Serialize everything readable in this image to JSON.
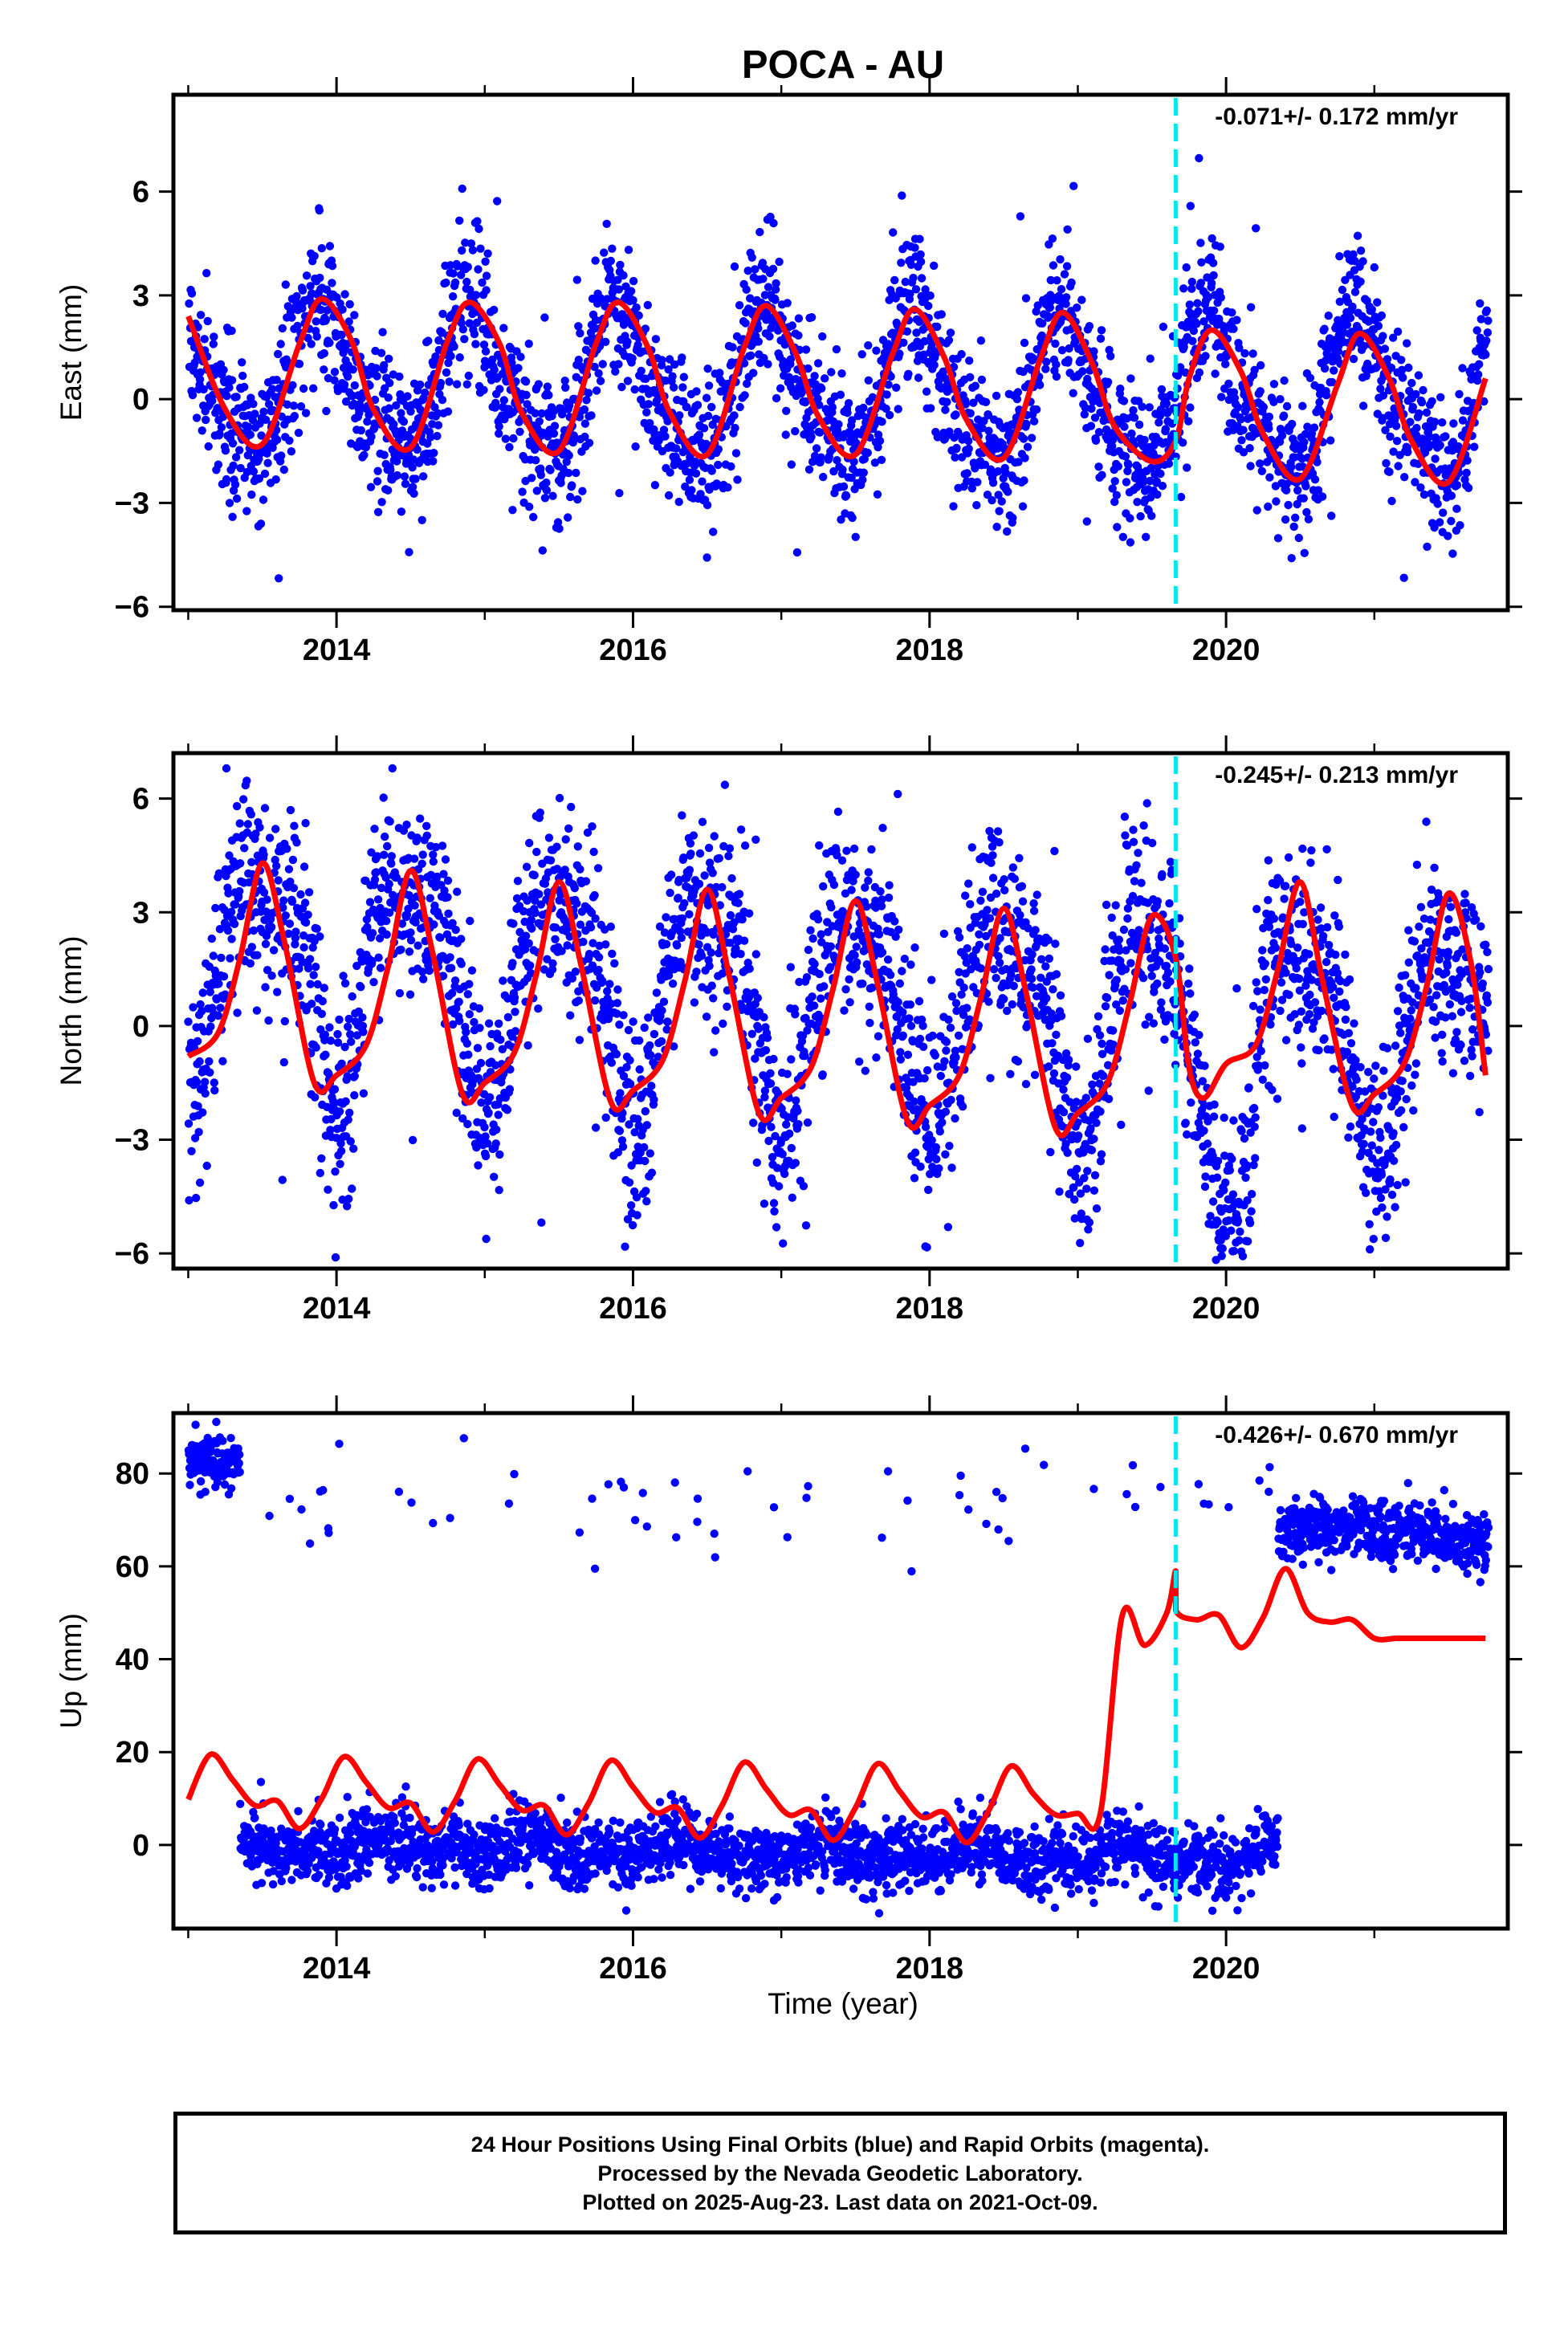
{
  "figure": {
    "title": "POCA - AU",
    "xlabel": "Time (year)"
  },
  "footer": {
    "line1": "24 Hour Positions Using Final Orbits (blue) and Rapid Orbits (magenta).",
    "line2": "Processed by the Nevada Geodetic Laboratory.",
    "line3": "Plotted on 2025-Aug-23. Last data on 2021-Oct-09."
  },
  "colors": {
    "points": "#0000ff",
    "model": "#ff0000",
    "event_line": "#00e5ee",
    "axes": "#000000"
  },
  "chart_data": [
    {
      "type": "scatter",
      "panel": "east",
      "ylabel": "East (mm)",
      "rate_label": "-0.071+/- 0.172 mm/yr",
      "xlim": [
        2012.9,
        2021.9
      ],
      "ylim": [
        -6.1,
        8.8
      ],
      "xticks": [
        2014,
        2016,
        2018,
        2020
      ],
      "yticks": [
        -6,
        -3,
        0,
        3,
        6
      ],
      "event_lines": [
        2019.66
      ],
      "data_series": {
        "name": "daily positions (final orbits)",
        "model": {
          "offset": 0.3,
          "trend": -0.071,
          "annual_amp": 2.1,
          "annual_peak": 0.9,
          "semi_amp": 0.5,
          "semi_phase": 0.15,
          "noise": 1.05,
          "start": 2013.0,
          "end": 2021.77,
          "mjump": 0,
          "djump": 0,
          "drift": -0.03
        }
      },
      "model_series": {
        "name": "fitted model",
        "x": [
          2013.0,
          2013.25,
          2013.5,
          2013.75,
          2013.9,
          2014.1,
          2014.25,
          2014.5,
          2014.75,
          2014.9,
          2015.1,
          2015.25,
          2015.5,
          2015.75,
          2015.9,
          2016.1,
          2016.25,
          2016.5,
          2016.75,
          2016.9,
          2017.1,
          2017.25,
          2017.5,
          2017.75,
          2017.9,
          2018.1,
          2018.25,
          2018.5,
          2018.75,
          2018.9,
          2019.1,
          2019.25,
          2019.5,
          2019.66,
          2019.75,
          2019.9,
          2020.1,
          2020.25,
          2020.5,
          2020.75,
          2020.9,
          2021.1,
          2021.25,
          2021.5,
          2021.75
        ],
        "y": [
          2.4,
          -0.3,
          -1.3,
          1.6,
          2.9,
          1.7,
          -0.3,
          -1.4,
          1.7,
          2.8,
          1.6,
          -0.4,
          -1.5,
          1.6,
          2.8,
          1.5,
          -0.4,
          -1.6,
          1.5,
          2.7,
          1.3,
          -0.5,
          -1.6,
          1.3,
          2.6,
          1.2,
          -0.6,
          -1.7,
          1.2,
          2.5,
          1.0,
          -0.8,
          -1.8,
          -1.2,
          0.6,
          2.0,
          0.8,
          -1.0,
          -2.3,
          0.4,
          1.9,
          0.6,
          -1.2,
          -2.4,
          0.6
        ]
      }
    },
    {
      "type": "scatter",
      "panel": "north",
      "ylabel": "North (mm)",
      "rate_label": "-0.245+/- 0.213 mm/yr",
      "xlim": [
        2012.9,
        2021.9
      ],
      "ylim": [
        -6.4,
        7.2
      ],
      "xticks": [
        2014,
        2016,
        2018,
        2020
      ],
      "yticks": [
        -6,
        -3,
        0,
        3,
        6
      ],
      "event_lines": [
        2019.66
      ],
      "data_series": {
        "name": "daily positions (final orbits)",
        "model": {
          "offset": 0.8,
          "trend": -0.245,
          "annual_amp": 2.7,
          "annual_peak": 0.5,
          "semi_amp": 0.9,
          "semi_phase": 0.45,
          "noise": 1.25,
          "start": 2013.0,
          "end": 2021.77,
          "mjump": 0,
          "djump": 0,
          "drift": 0
        }
      },
      "model_series": {
        "name": "fitted model",
        "x": [
          2013.0,
          2013.2,
          2013.35,
          2013.5,
          2013.65,
          2013.85,
          2014.0,
          2014.2,
          2014.35,
          2014.5,
          2014.65,
          2014.85,
          2015.0,
          2015.2,
          2015.35,
          2015.5,
          2015.65,
          2015.85,
          2016.0,
          2016.2,
          2016.35,
          2016.5,
          2016.65,
          2016.85,
          2017.0,
          2017.2,
          2017.35,
          2017.5,
          2017.65,
          2017.85,
          2018.0,
          2018.2,
          2018.35,
          2018.5,
          2018.65,
          2018.85,
          2019.0,
          2019.2,
          2019.35,
          2019.5,
          2019.66,
          2019.75,
          2019.85,
          2020.0,
          2020.2,
          2020.35,
          2020.5,
          2020.65,
          2020.85,
          2021.0,
          2021.2,
          2021.35,
          2021.5,
          2021.65,
          2021.75
        ],
        "y": [
          -0.8,
          -0.2,
          1.8,
          4.3,
          2.2,
          -1.5,
          -1.3,
          -0.5,
          1.6,
          4.1,
          1.9,
          -1.8,
          -1.5,
          -0.7,
          1.4,
          3.8,
          1.6,
          -2.0,
          -1.7,
          -0.9,
          1.2,
          3.6,
          1.3,
          -2.3,
          -1.9,
          -1.1,
          1.0,
          3.3,
          1.1,
          -2.5,
          -2.1,
          -1.3,
          0.8,
          3.1,
          0.9,
          -2.7,
          -2.3,
          -1.5,
          0.6,
          2.9,
          1.8,
          -1.1,
          -1.9,
          -1.0,
          -0.5,
          1.5,
          3.8,
          1.2,
          -2.1,
          -1.8,
          -1.0,
          1.0,
          3.5,
          1.7,
          -1.3
        ]
      }
    },
    {
      "type": "scatter",
      "panel": "up",
      "ylabel": "Up (mm)",
      "rate_label": "-0.426+/- 0.670 mm/yr",
      "xlim": [
        2012.9,
        2021.9
      ],
      "ylim": [
        -18,
        93
      ],
      "xticks": [
        2014,
        2016,
        2018,
        2020
      ],
      "yticks": [
        0,
        20,
        40,
        60,
        80
      ],
      "event_lines": [
        2019.66
      ],
      "data_series": {
        "name": "daily positions (final orbits)",
        "model": {
          "offset": 0,
          "trend": -0.9,
          "annual_amp": 3.5,
          "annual_peak": 0.3,
          "semi_amp": 1.5,
          "semi_phase": 0.1,
          "noise": 3.6,
          "start": 2013.0,
          "end": 2021.77,
          "mjump": 0,
          "djump": 0,
          "drift": 0,
          "jump_at": 2019.66,
          "high_segments": [
            {
              "start": 2013.0,
              "end": 2013.35,
              "level": 82,
              "noise": 3.0
            },
            {
              "start": 2020.35,
              "end": 2021.77,
              "level": 67,
              "noise": 3.2
            }
          ],
          "sparse_high": {
            "start": 2013.35,
            "end": 2020.35,
            "level": 74,
            "noise": 5.5
          },
          "low_end": 2020.35
        }
      },
      "model_series": {
        "name": "fitted model",
        "x": [
          2013.0,
          2013.15,
          2013.3,
          2013.45,
          2013.6,
          2013.75,
          2013.9,
          2014.05,
          2014.2,
          2014.35,
          2014.5,
          2014.65,
          2014.8,
          2014.95,
          2015.1,
          2015.25,
          2015.4,
          2015.55,
          2015.7,
          2015.85,
          2016.0,
          2016.15,
          2016.3,
          2016.45,
          2016.6,
          2016.75,
          2016.9,
          2017.05,
          2017.2,
          2017.35,
          2017.5,
          2017.65,
          2017.8,
          2017.95,
          2018.1,
          2018.25,
          2018.4,
          2018.55,
          2018.7,
          2018.85,
          2019.0,
          2019.15,
          2019.3,
          2019.45,
          2019.6,
          2019.66,
          2019.661,
          2019.8,
          2019.95,
          2020.1,
          2020.25,
          2020.4,
          2020.55,
          2020.7,
          2020.85,
          2021.0,
          2021.15,
          2021.3,
          2021.45,
          2021.6,
          2021.75
        ],
        "y": [
          9.8,
          19.5,
          14.0,
          8.5,
          9.5,
          3.5,
          10.0,
          19.0,
          13.5,
          8.0,
          9.0,
          2.8,
          9.5,
          18.5,
          13.0,
          7.5,
          8.5,
          2.2,
          9.0,
          18.2,
          12.5,
          7.0,
          8.0,
          1.5,
          8.5,
          17.8,
          12.0,
          6.5,
          7.5,
          1.0,
          8.0,
          17.5,
          11.5,
          6.0,
          7.0,
          0.5,
          7.5,
          17.0,
          11.0,
          6.5,
          6.8,
          6.5,
          49.5,
          43.0,
          50.0,
          59.0,
          50.5,
          48.5,
          49.5,
          42.5,
          49.0,
          59.5,
          50.0,
          48.0,
          48.5,
          44.5,
          44.5,
          44.5,
          44.5,
          44.5,
          44.5
        ]
      }
    }
  ]
}
